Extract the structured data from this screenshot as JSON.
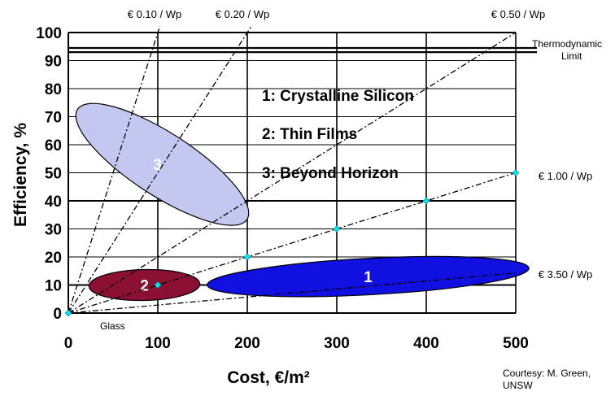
{
  "chart_data": {
    "type": "scatter",
    "xlabel": "Cost, €/m²",
    "ylabel": "Efficiency, %",
    "xlim": [
      0,
      500
    ],
    "ylim": [
      0,
      100
    ],
    "x_ticks": [
      "0",
      "100",
      "200",
      "300",
      "400",
      "500"
    ],
    "y_ticks": [
      "0",
      "10",
      "20",
      "30",
      "40",
      "50",
      "60",
      "70",
      "80",
      "90",
      "100"
    ],
    "thermodynamic_limit": {
      "label_line1": "Thermodynamic",
      "label_line2": "Limit",
      "efficiency": [
        93,
        94.5
      ]
    },
    "cost_lines": [
      {
        "label": "€ 0.10 / Wp",
        "wp_cost": 0.1,
        "placement": "top"
      },
      {
        "label": "€ 0.20 / Wp",
        "wp_cost": 0.2,
        "placement": "top"
      },
      {
        "label": "€ 0.50 / Wp",
        "wp_cost": 0.5,
        "placement": "top-right"
      },
      {
        "label": "€ 1.00 / Wp",
        "wp_cost": 1.0,
        "placement": "right"
      },
      {
        "label": "€ 3.50 / Wp",
        "wp_cost": 3.5,
        "placement": "right"
      }
    ],
    "marker_points": [
      {
        "x": 0,
        "y": 0
      },
      {
        "x": 100,
        "y": 10
      },
      {
        "x": 200,
        "y": 20
      },
      {
        "x": 300,
        "y": 30
      },
      {
        "x": 400,
        "y": 40
      },
      {
        "x": 500,
        "y": 50
      }
    ],
    "regions": [
      {
        "id": "1",
        "name": "Crystalline Silicon",
        "color": "#1010e0",
        "cx": 335,
        "cy": 13,
        "rx_cost": 180,
        "ry_eff": 6.5,
        "tilt": 0.05
      },
      {
        "id": "2",
        "name": "Thin Films",
        "color": "#8b1034",
        "cx": 85,
        "cy": 10,
        "rx_cost": 62,
        "ry_eff": 5.5,
        "tilt": 0.02
      },
      {
        "id": "3",
        "name": "Beyond Horizon",
        "color": "#c4c8f0",
        "cx": 105,
        "cy": 53,
        "rx_cost": 35,
        "ry_eff": 36,
        "tilt": 0.62
      }
    ],
    "legend": [
      "1: Crystalline Silicon",
      "2: Thin Films",
      "3: Beyond Horizon"
    ],
    "annotations": {
      "glass": "Glass",
      "courtesy_line1": "Courtesy: M. Green,",
      "courtesy_line2": "UNSW"
    },
    "grid": true
  }
}
